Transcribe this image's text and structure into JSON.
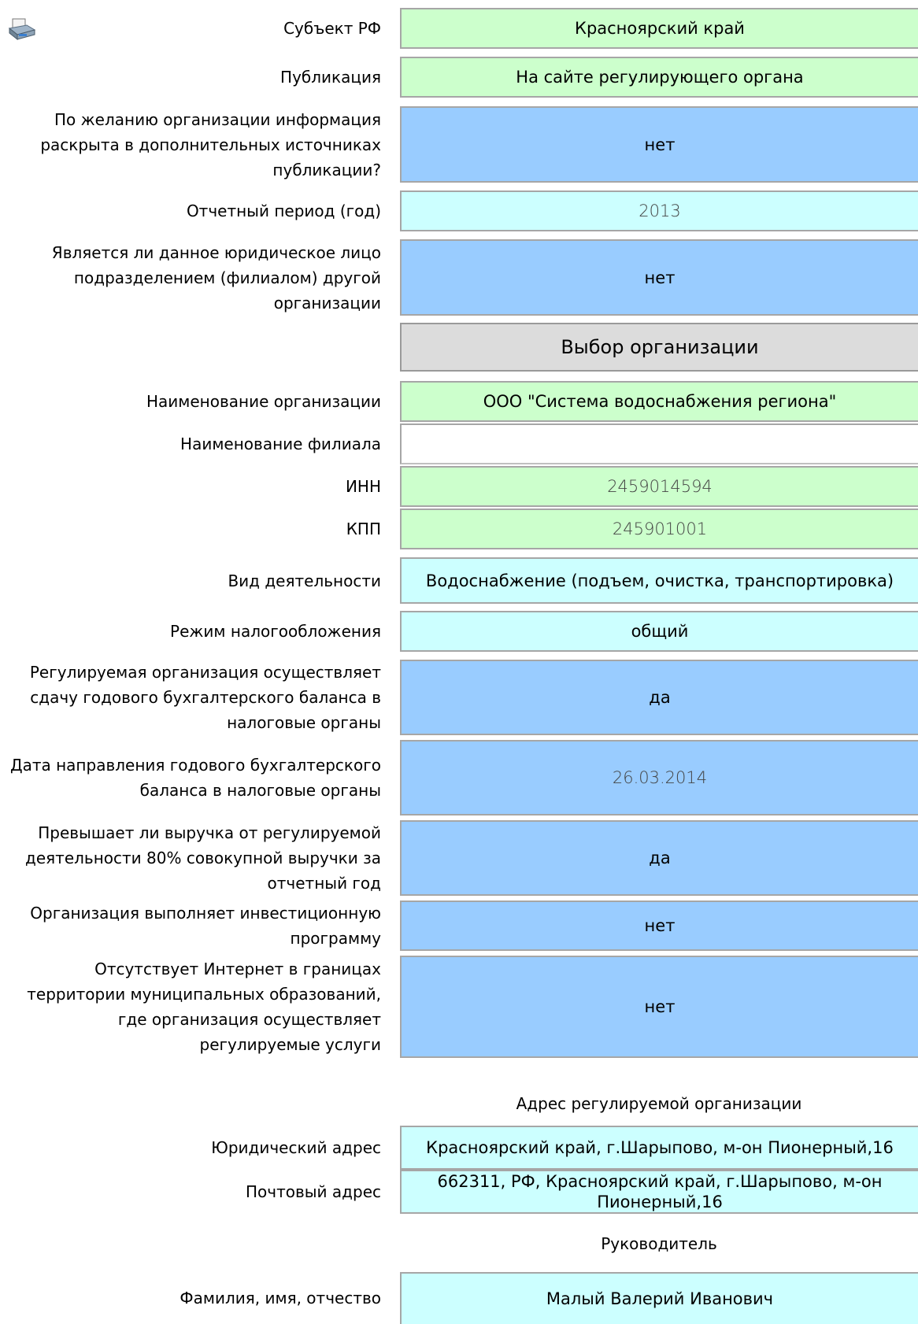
{
  "icon": "printer-icon",
  "fields": {
    "subject_label": "Субъект РФ",
    "subject_value": "Красноярский край",
    "publication_label": "Публикация",
    "publication_value": "На сайте регулирующего органа",
    "extra_sources_label": "По желанию организации информация раскрыта в дополнительных источниках публикации?",
    "extra_sources_value": "нет",
    "period_label": "Отчетный период (год)",
    "period_value": "2013",
    "branch_label": "Является ли данное юридическое лицо подразделением (филиалом) другой организации",
    "branch_value": "нет",
    "select_org_button": "Выбор организации",
    "org_name_label": "Наименование организации",
    "org_name_value": "ООО \"Система водоснабжения региона\"",
    "branch_name_label": "Наименование филиала",
    "branch_name_value": "",
    "inn_label": "ИНН",
    "inn_value": "2459014594",
    "kpp_label": "КПП",
    "kpp_value": "245901001",
    "activity_label": "Вид деятельности",
    "activity_value": "Водоснабжение (подъем, очистка, транспортировка)",
    "tax_label": "Режим налогообложения",
    "tax_value": "общий",
    "balance_label": "Регулируемая организация осуществляет сдачу годового бухгалтерского баланса в налоговые органы",
    "balance_value": "да",
    "balance_date_label": "Дата направления годового бухгалтерского баланса в налоговые органы",
    "balance_date_value": "26.03.2014",
    "revenue_label": "Превышает ли выручка от регулируемой деятельности 80% совокупной выручки за отчетный год",
    "revenue_value": "да",
    "invest_label": "Организация выполняет инвестиционную программу",
    "invest_value": "нет",
    "internet_label": "Отсутствует Интернет в границах территории муниципальных образований, где организация осуществляет регулируемые услуги",
    "internet_value": "нет"
  },
  "address": {
    "section_title": "Адрес регулируемой организации",
    "legal_label": "Юридический адрес",
    "legal_value": "Красноярский край, г.Шарыпово, м-он Пионерный,16",
    "postal_label": "Почтовый адрес",
    "postal_value": "662311, РФ, Красноярский край, г.Шарыпово, м-он Пионерный,16"
  },
  "head": {
    "section_title": "Руководитель",
    "name_label": "Фамилия, имя, отчество",
    "name_value": "Малый  Валерий Иванович"
  }
}
